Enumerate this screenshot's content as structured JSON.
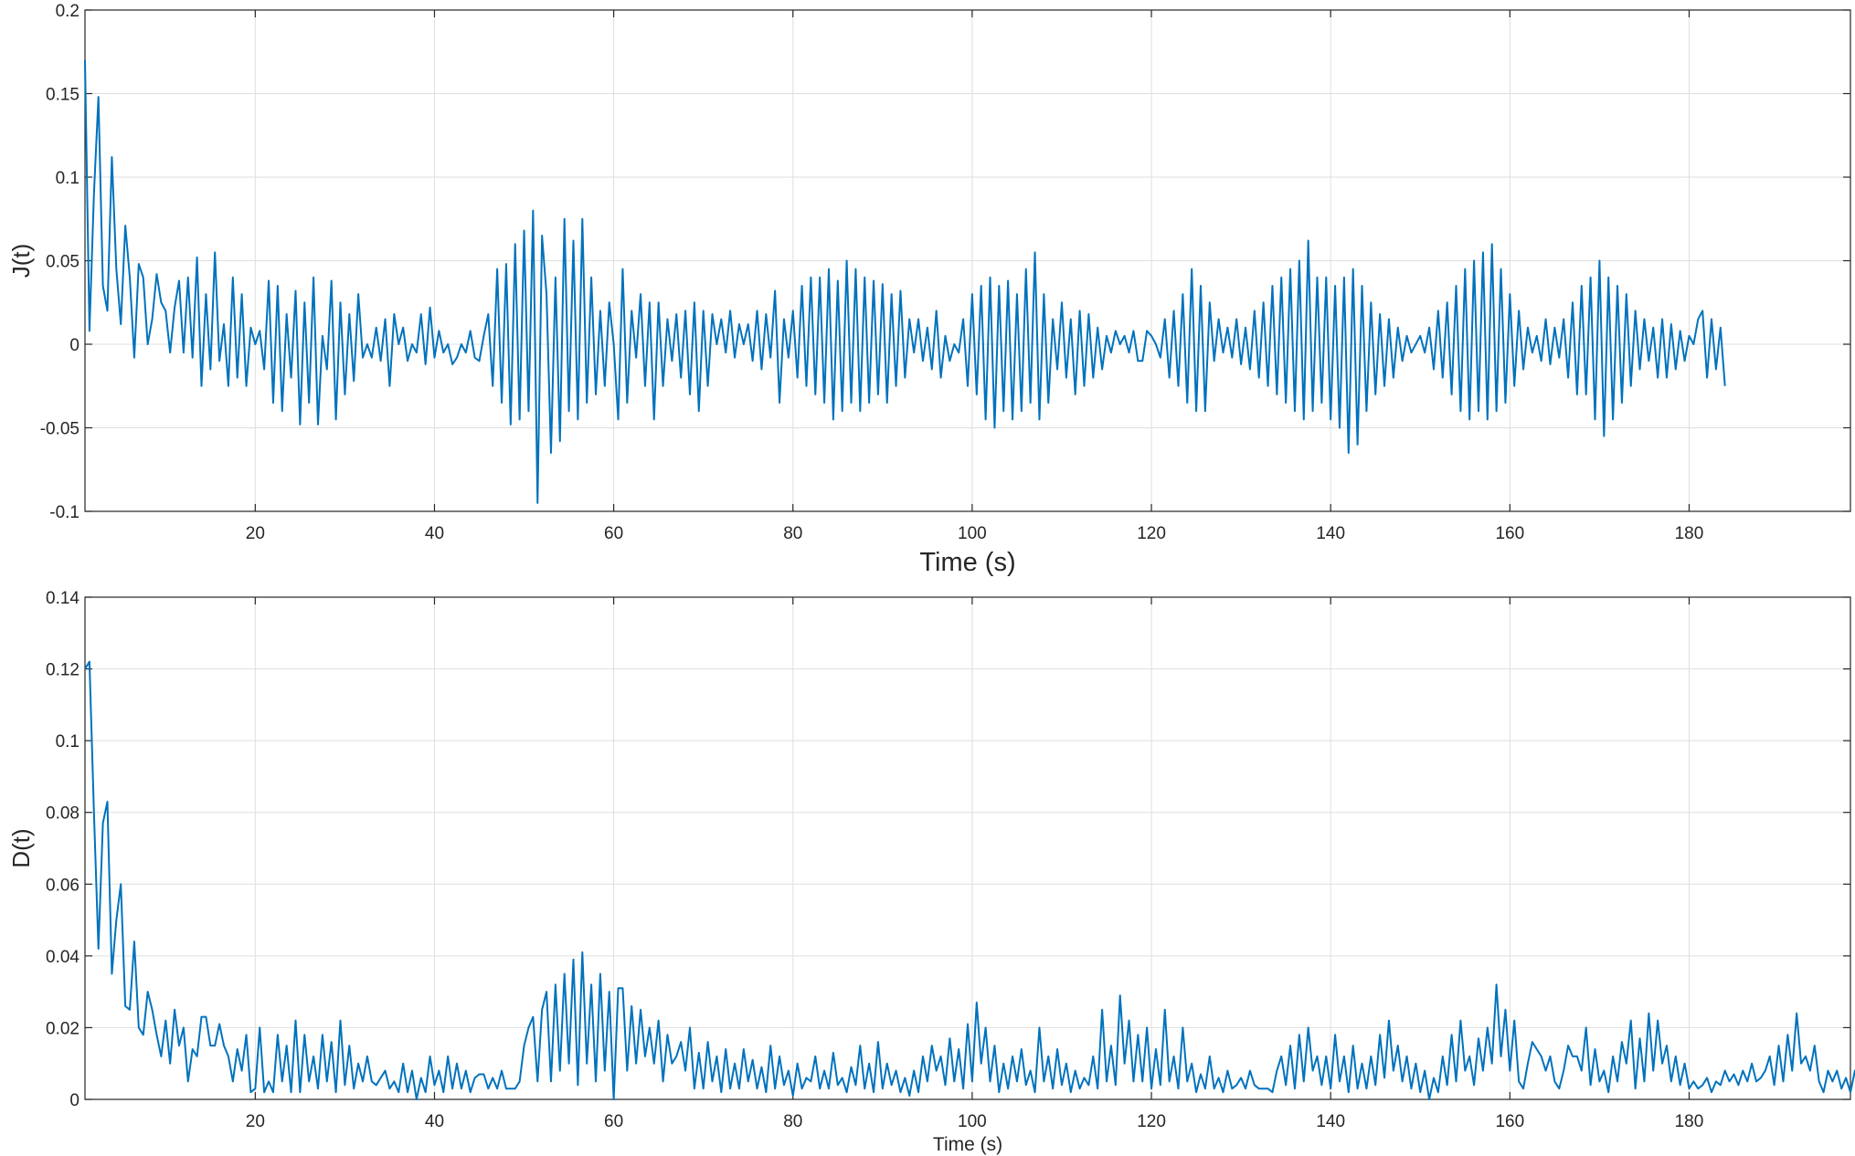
{
  "colors": {
    "series": "#0072bd",
    "grid": "#dfdfdf",
    "axis": "#262626",
    "background": "#ffffff"
  },
  "chart_data": [
    {
      "type": "line",
      "ylabel": "J(t)",
      "xlabel": "Time (s)",
      "xlim": [
        1,
        198
      ],
      "ylim": [
        -0.1,
        0.2
      ],
      "xticks": [
        20,
        40,
        60,
        80,
        100,
        120,
        140,
        160,
        180
      ],
      "xtick_labels": [
        "20",
        "40",
        "60",
        "80",
        "100",
        "120",
        "140",
        "160",
        "180"
      ],
      "yticks": [
        -0.1,
        -0.05,
        0,
        0.05,
        0.1,
        0.15,
        0.2
      ],
      "ytick_labels": [
        "-0.1",
        "-0.05",
        "0",
        "0.05",
        "0.1",
        "0.15",
        "0.2"
      ],
      "grid": true,
      "series": [
        {
          "dt": 0.5,
          "values": [
            0.17,
            0.008,
            0.09,
            0.148,
            0.035,
            0.02,
            0.112,
            0.045,
            0.012,
            0.071,
            0.04,
            -0.008,
            0.048,
            0.04,
            0.0,
            0.015,
            0.042,
            0.025,
            0.02,
            -0.005,
            0.022,
            0.038,
            -0.005,
            0.04,
            -0.008,
            0.052,
            -0.025,
            0.03,
            -0.015,
            0.055,
            -0.01,
            0.012,
            -0.025,
            0.04,
            -0.02,
            0.03,
            -0.025,
            0.01,
            0.0,
            0.008,
            -0.015,
            0.038,
            -0.035,
            0.035,
            -0.04,
            0.018,
            -0.02,
            0.032,
            -0.048,
            0.025,
            -0.035,
            0.04,
            -0.048,
            0.005,
            -0.015,
            0.038,
            -0.045,
            0.025,
            -0.03,
            0.018,
            -0.022,
            0.03,
            -0.008,
            0.0,
            -0.008,
            0.01,
            -0.01,
            0.015,
            -0.025,
            0.018,
            0.0,
            0.01,
            -0.01,
            0.0,
            -0.005,
            0.018,
            -0.012,
            0.022,
            -0.008,
            0.008,
            -0.005,
            0.0,
            -0.012,
            -0.008,
            0.0,
            -0.005,
            0.008,
            -0.008,
            -0.01,
            0.005,
            0.018,
            -0.025,
            0.045,
            -0.035,
            0.048,
            -0.048,
            0.06,
            -0.045,
            0.068,
            -0.04,
            0.08,
            -0.095,
            0.065,
            0.03,
            -0.065,
            0.04,
            -0.058,
            0.075,
            -0.04,
            0.062,
            -0.045,
            0.075,
            -0.035,
            0.04,
            -0.03,
            0.02,
            -0.025,
            0.025,
            0.0,
            -0.045,
            0.045,
            -0.035,
            0.02,
            -0.008,
            0.03,
            -0.025,
            0.025,
            -0.045,
            0.025,
            -0.025,
            0.015,
            -0.01,
            0.018,
            -0.02,
            0.02,
            -0.03,
            0.025,
            -0.04,
            0.02,
            -0.025,
            0.018,
            0.0,
            0.015,
            -0.005,
            0.02,
            -0.008,
            0.012,
            0.0,
            0.012,
            -0.01,
            0.02,
            -0.015,
            0.018,
            -0.008,
            0.032,
            -0.035,
            0.015,
            -0.008,
            0.02,
            -0.02,
            0.035,
            -0.025,
            0.04,
            -0.03,
            0.04,
            -0.035,
            0.045,
            -0.045,
            0.038,
            -0.04,
            0.05,
            -0.035,
            0.045,
            -0.04,
            0.04,
            -0.035,
            0.038,
            -0.03,
            0.036,
            -0.035,
            0.03,
            -0.025,
            0.032,
            -0.02,
            0.015,
            -0.005,
            0.015,
            -0.01,
            0.01,
            -0.015,
            0.02,
            -0.02,
            0.005,
            -0.01,
            0.0,
            -0.005,
            0.015,
            -0.025,
            0.03,
            -0.03,
            0.035,
            -0.045,
            0.04,
            -0.05,
            0.035,
            -0.04,
            0.038,
            -0.045,
            0.03,
            -0.04,
            0.045,
            -0.035,
            0.055,
            -0.045,
            0.03,
            -0.035,
            0.015,
            -0.015,
            0.025,
            -0.02,
            0.015,
            -0.03,
            0.02,
            -0.025,
            0.018,
            -0.02,
            0.01,
            -0.015,
            0.005,
            -0.005,
            0.008,
            0.0,
            0.005,
            -0.005,
            0.008,
            -0.01,
            -0.01,
            0.008,
            0.005,
            0.0,
            -0.008,
            0.015,
            -0.02,
            0.02,
            -0.025,
            0.03,
            -0.035,
            0.045,
            -0.04,
            0.035,
            -0.04,
            0.025,
            -0.01,
            0.015,
            -0.005,
            0.01,
            -0.008,
            0.015,
            -0.012,
            0.01,
            -0.015,
            0.02,
            -0.02,
            0.025,
            -0.025,
            0.035,
            -0.03,
            0.04,
            -0.035,
            0.045,
            -0.04,
            0.05,
            -0.045,
            0.062,
            -0.04,
            0.04,
            -0.035,
            0.04,
            -0.045,
            0.035,
            -0.05,
            0.04,
            -0.065,
            0.045,
            -0.06,
            0.035,
            -0.04,
            0.025,
            -0.03,
            0.018,
            -0.025,
            0.015,
            -0.02,
            0.01,
            -0.01,
            0.005,
            -0.005,
            0.0,
            0.005,
            -0.005,
            0.01,
            -0.015,
            0.02,
            -0.02,
            0.025,
            -0.03,
            0.035,
            -0.04,
            0.045,
            -0.045,
            0.05,
            -0.04,
            0.055,
            -0.045,
            0.06,
            -0.04,
            0.045,
            -0.035,
            0.03,
            -0.025,
            0.02,
            -0.015,
            0.01,
            -0.005,
            0.005,
            -0.01,
            0.015,
            -0.012,
            0.01,
            -0.008,
            0.015,
            -0.02,
            0.025,
            -0.03,
            0.035,
            -0.03,
            0.04,
            -0.045,
            0.05,
            -0.055,
            0.04,
            -0.045,
            0.035,
            -0.035,
            0.03,
            -0.025,
            0.02,
            -0.015,
            0.015,
            -0.01,
            0.01,
            -0.02,
            0.015,
            -0.02,
            0.012,
            -0.015,
            0.008,
            -0.01,
            0.005,
            0.0,
            0.015,
            0.02,
            -0.02,
            0.015,
            -0.015,
            0.01,
            -0.025
          ]
        }
      ]
    },
    {
      "type": "line",
      "ylabel": "D(t)",
      "xlabel": "Time (s)",
      "xlim": [
        1,
        198
      ],
      "ylim": [
        0,
        0.14
      ],
      "xticks": [
        20,
        40,
        60,
        80,
        100,
        120,
        140,
        160,
        180
      ],
      "xtick_labels": [
        "20",
        "40",
        "60",
        "80",
        "100",
        "120",
        "140",
        "160",
        "180"
      ],
      "yticks": [
        0,
        0.02,
        0.04,
        0.06,
        0.08,
        0.1,
        0.12,
        0.14
      ],
      "ytick_labels": [
        "0",
        "0.02",
        "0.04",
        "0.06",
        "0.08",
        "0.1",
        "0.12",
        "0.14"
      ],
      "grid": true,
      "series": [
        {
          "dt": 0.5,
          "values": [
            0.12,
            0.122,
            0.08,
            0.042,
            0.077,
            0.083,
            0.035,
            0.05,
            0.06,
            0.026,
            0.025,
            0.044,
            0.02,
            0.018,
            0.03,
            0.025,
            0.018,
            0.012,
            0.022,
            0.01,
            0.025,
            0.015,
            0.02,
            0.005,
            0.014,
            0.012,
            0.023,
            0.023,
            0.015,
            0.015,
            0.021,
            0.015,
            0.012,
            0.005,
            0.014,
            0.008,
            0.018,
            0.002,
            0.003,
            0.02,
            0.002,
            0.005,
            0.002,
            0.018,
            0.005,
            0.015,
            0.002,
            0.022,
            0.002,
            0.018,
            0.005,
            0.012,
            0.003,
            0.018,
            0.005,
            0.016,
            0.002,
            0.022,
            0.004,
            0.015,
            0.003,
            0.01,
            0.005,
            0.012,
            0.005,
            0.004,
            0.006,
            0.008,
            0.003,
            0.005,
            0.002,
            0.01,
            0.002,
            0.008,
            0.0,
            0.006,
            0.002,
            0.012,
            0.004,
            0.008,
            0.002,
            0.012,
            0.003,
            0.01,
            0.003,
            0.008,
            0.002,
            0.006,
            0.007,
            0.007,
            0.003,
            0.006,
            0.003,
            0.008,
            0.003,
            0.003,
            0.003,
            0.005,
            0.015,
            0.02,
            0.023,
            0.005,
            0.025,
            0.03,
            0.005,
            0.032,
            0.008,
            0.035,
            0.01,
            0.039,
            0.004,
            0.041,
            0.01,
            0.032,
            0.005,
            0.035,
            0.008,
            0.03,
            0.0,
            0.031,
            0.031,
            0.008,
            0.026,
            0.01,
            0.025,
            0.012,
            0.02,
            0.01,
            0.022,
            0.005,
            0.018,
            0.01,
            0.012,
            0.016,
            0.008,
            0.02,
            0.003,
            0.013,
            0.003,
            0.016,
            0.005,
            0.012,
            0.002,
            0.014,
            0.003,
            0.01,
            0.003,
            0.014,
            0.005,
            0.011,
            0.003,
            0.009,
            0.002,
            0.015,
            0.003,
            0.012,
            0.004,
            0.008,
            0.001,
            0.01,
            0.003,
            0.006,
            0.005,
            0.012,
            0.003,
            0.008,
            0.003,
            0.013,
            0.004,
            0.006,
            0.002,
            0.009,
            0.004,
            0.015,
            0.003,
            0.01,
            0.002,
            0.016,
            0.003,
            0.01,
            0.004,
            0.008,
            0.002,
            0.006,
            0.001,
            0.008,
            0.002,
            0.012,
            0.005,
            0.015,
            0.008,
            0.012,
            0.004,
            0.017,
            0.005,
            0.014,
            0.003,
            0.021,
            0.005,
            0.027,
            0.01,
            0.02,
            0.005,
            0.015,
            0.002,
            0.01,
            0.003,
            0.012,
            0.005,
            0.014,
            0.004,
            0.008,
            0.002,
            0.02,
            0.005,
            0.012,
            0.003,
            0.014,
            0.004,
            0.01,
            0.002,
            0.008,
            0.003,
            0.006,
            0.004,
            0.012,
            0.003,
            0.025,
            0.005,
            0.015,
            0.004,
            0.029,
            0.01,
            0.022,
            0.005,
            0.018,
            0.005,
            0.02,
            0.003,
            0.014,
            0.004,
            0.025,
            0.005,
            0.012,
            0.003,
            0.02,
            0.005,
            0.01,
            0.002,
            0.007,
            0.003,
            0.012,
            0.003,
            0.006,
            0.002,
            0.008,
            0.003,
            0.004,
            0.006,
            0.003,
            0.008,
            0.004,
            0.003,
            0.003,
            0.003,
            0.002,
            0.008,
            0.012,
            0.004,
            0.015,
            0.003,
            0.018,
            0.005,
            0.02,
            0.008,
            0.012,
            0.004,
            0.012,
            0.003,
            0.018,
            0.005,
            0.012,
            0.002,
            0.015,
            0.003,
            0.01,
            0.003,
            0.012,
            0.004,
            0.018,
            0.006,
            0.022,
            0.008,
            0.015,
            0.005,
            0.012,
            0.003,
            0.01,
            0.002,
            0.008,
            0.0,
            0.006,
            0.002,
            0.012,
            0.004,
            0.018,
            0.005,
            0.022,
            0.008,
            0.012,
            0.004,
            0.017,
            0.008,
            0.02,
            0.01,
            0.032,
            0.012,
            0.025,
            0.008,
            0.022,
            0.005,
            0.003,
            0.01,
            0.016,
            0.014,
            0.012,
            0.008,
            0.012,
            0.005,
            0.003,
            0.008,
            0.015,
            0.012,
            0.012,
            0.008,
            0.02,
            0.004,
            0.014,
            0.005,
            0.008,
            0.002,
            0.012,
            0.005,
            0.016,
            0.01,
            0.022,
            0.003,
            0.017,
            0.005,
            0.024,
            0.008,
            0.022,
            0.01,
            0.015,
            0.005,
            0.012,
            0.004,
            0.01,
            0.003,
            0.005,
            0.003,
            0.004,
            0.006,
            0.002,
            0.005,
            0.004,
            0.008,
            0.005,
            0.007,
            0.004,
            0.008,
            0.005,
            0.01,
            0.005,
            0.006,
            0.008,
            0.012,
            0.004,
            0.015,
            0.005,
            0.018,
            0.008,
            0.024,
            0.01,
            0.012,
            0.008,
            0.015,
            0.005,
            0.002,
            0.008,
            0.005,
            0.008,
            0.003,
            0.006,
            0.002,
            0.008,
            0.005,
            0.003,
            0.016
          ]
        }
      ]
    }
  ]
}
